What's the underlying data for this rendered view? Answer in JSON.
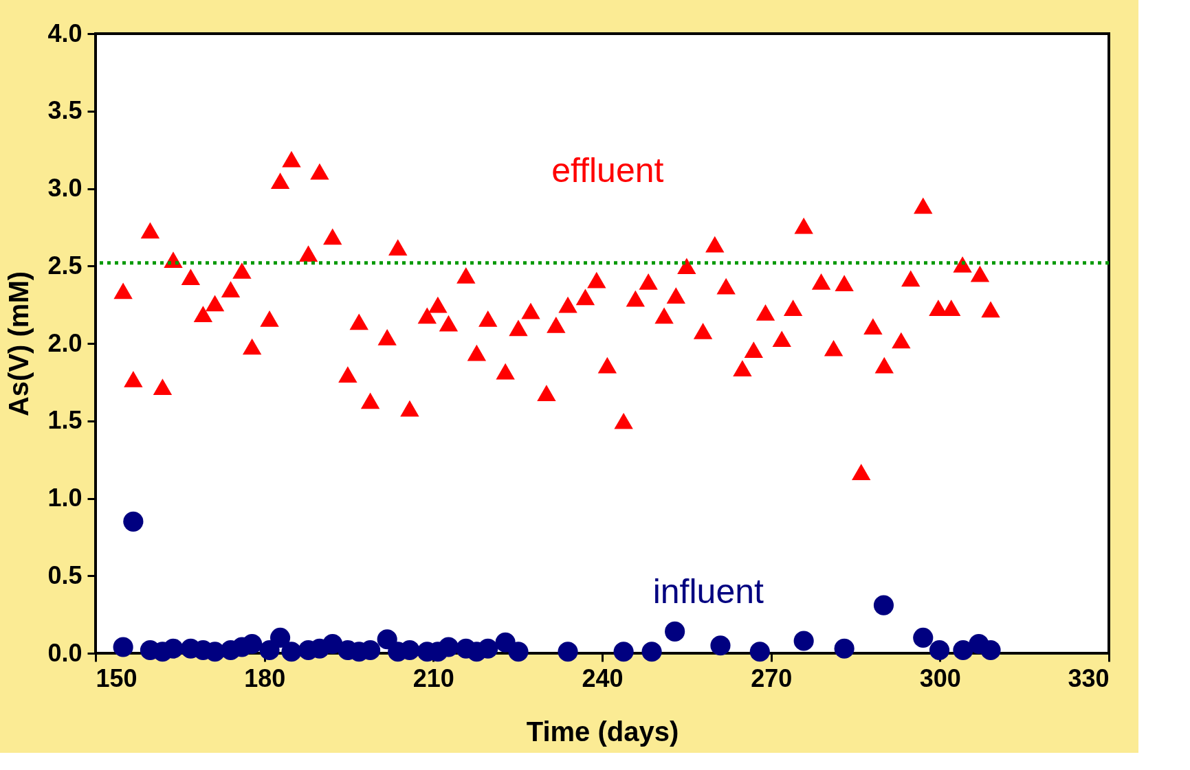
{
  "chart_data": {
    "type": "scatter",
    "xlabel": "Time (days)",
    "ylabel": "As(V) (mM)",
    "xlim": [
      150,
      330
    ],
    "xticks": [
      150,
      180,
      210,
      240,
      270,
      300,
      330
    ],
    "ylim": [
      0,
      4.0
    ],
    "yticks": [
      {
        "value": 0,
        "label": "0.0"
      },
      {
        "value": 0.5,
        "label": "0.5"
      },
      {
        "value": 1,
        "label": "1.0"
      },
      {
        "value": 1.5,
        "label": "1.5"
      },
      {
        "value": 2,
        "label": "2.0"
      },
      {
        "value": 2.5,
        "label": "2.5"
      },
      {
        "value": 3,
        "label": "3.0"
      },
      {
        "value": 3.5,
        "label": "3.5"
      },
      {
        "value": 4,
        "label": "4.0"
      }
    ],
    "grid": false,
    "legend": false,
    "ref_lines": [
      {
        "axis": "y",
        "value": 2.52,
        "color": "#009900",
        "line_style": "dotted"
      }
    ],
    "series": [
      {
        "name": "effluent",
        "color": "#ff0000",
        "marker": "triangle",
        "x": [
          154.9,
          156.7,
          159.7,
          161.9,
          163.8,
          166.9,
          169.1,
          171.2,
          174.0,
          176.0,
          177.8,
          180.9,
          182.8,
          184.8,
          187.8,
          189.8,
          192.1,
          194.8,
          196.8,
          198.8,
          201.8,
          203.7,
          205.8,
          208.9,
          210.8,
          212.7,
          215.8,
          217.7,
          219.7,
          222.8,
          225.1,
          227.3,
          230.1,
          231.8,
          233.9,
          237.0,
          239.0,
          240.9,
          243.8,
          245.9,
          248.2,
          251.0,
          253.1,
          255.0,
          257.9,
          260.0,
          262.0,
          264.9,
          266.9,
          269.0,
          271.9,
          273.9,
          275.8,
          278.9,
          281.1,
          283.0,
          286.0,
          288.1,
          290.1,
          293.1,
          294.8,
          297.0,
          299.7,
          302.0,
          304.0,
          307.1,
          309.0
        ],
        "values": [
          2.34,
          1.77,
          2.73,
          1.72,
          2.54,
          2.43,
          2.19,
          2.26,
          2.35,
          2.47,
          1.98,
          2.16,
          3.05,
          3.19,
          2.58,
          3.11,
          2.69,
          1.8,
          2.14,
          1.63,
          2.04,
          2.62,
          1.58,
          2.18,
          2.25,
          2.13,
          2.44,
          1.94,
          2.16,
          1.82,
          2.1,
          2.21,
          1.68,
          2.12,
          2.25,
          2.3,
          2.41,
          1.86,
          1.5,
          2.29,
          2.4,
          2.18,
          2.31,
          2.5,
          2.08,
          2.64,
          2.37,
          1.84,
          1.96,
          2.2,
          2.03,
          2.23,
          2.76,
          2.4,
          1.97,
          2.39,
          1.17,
          2.11,
          1.86,
          2.02,
          2.42,
          2.89,
          2.23,
          2.23,
          2.51,
          2.45,
          2.22
        ]
      },
      {
        "name": "influent",
        "color": "#000080",
        "marker": "circle",
        "x": [
          154.9,
          156.7,
          159.7,
          161.9,
          163.8,
          166.9,
          169.1,
          171.2,
          174.0,
          176.0,
          177.8,
          180.9,
          182.8,
          184.8,
          187.8,
          189.8,
          192.1,
          194.8,
          196.8,
          198.8,
          201.8,
          203.7,
          205.8,
          208.9,
          210.8,
          212.7,
          215.8,
          217.7,
          219.7,
          222.8,
          225.1,
          233.9,
          243.8,
          248.8,
          252.9,
          261.0,
          268.0,
          275.8,
          283.0,
          290.0,
          297.0,
          299.9,
          304.1,
          306.9,
          309.0
        ],
        "values": [
          0.04,
          0.85,
          0.02,
          0.01,
          0.03,
          0.03,
          0.02,
          0.01,
          0.02,
          0.04,
          0.06,
          0.02,
          0.1,
          0.01,
          0.02,
          0.03,
          0.06,
          0.02,
          0.01,
          0.02,
          0.09,
          0.01,
          0.02,
          0.01,
          0.01,
          0.04,
          0.03,
          0.01,
          0.03,
          0.07,
          0.01,
          0.01,
          0.01,
          0.01,
          0.14,
          0.05,
          0.01,
          0.08,
          0.03,
          0.31,
          0.1,
          0.02,
          0.02,
          0.06,
          0.02
        ]
      }
    ]
  }
}
